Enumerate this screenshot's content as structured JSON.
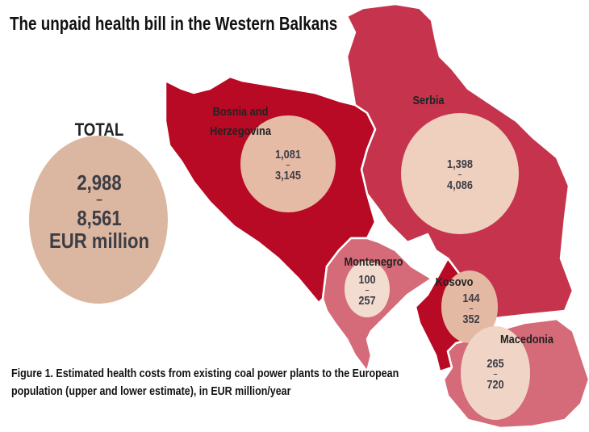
{
  "title": "The unpaid health bill in the Western Balkans",
  "total": {
    "label": "TOTAL",
    "lower": "2,988",
    "dash": "–",
    "upper": "8,561",
    "unit": "EUR million"
  },
  "countries": [
    {
      "name": "Bosnia and Herzegovina",
      "name_line1": "Bosnia and",
      "name_line2": "Herzegovina",
      "lower": "1,081",
      "upper": "3,145",
      "color": "#b80a24"
    },
    {
      "name": "Serbia",
      "lower": "1,398",
      "upper": "4,086",
      "color": "#c5344c"
    },
    {
      "name": "Montenegro",
      "lower": "100",
      "upper": "257",
      "color": "#d56a78"
    },
    {
      "name": "Kosovo",
      "lower": "144",
      "upper": "352",
      "color": "#b80a24"
    },
    {
      "name": "Macedonia",
      "lower": "265",
      "upper": "720",
      "color": "#d56a78"
    }
  ],
  "dash": "–",
  "caption_line1": "Figure 1.  Estimated health costs from existing coal power plants to the European",
  "caption_line2": "population (upper and lower estimate), in EUR million/year"
}
